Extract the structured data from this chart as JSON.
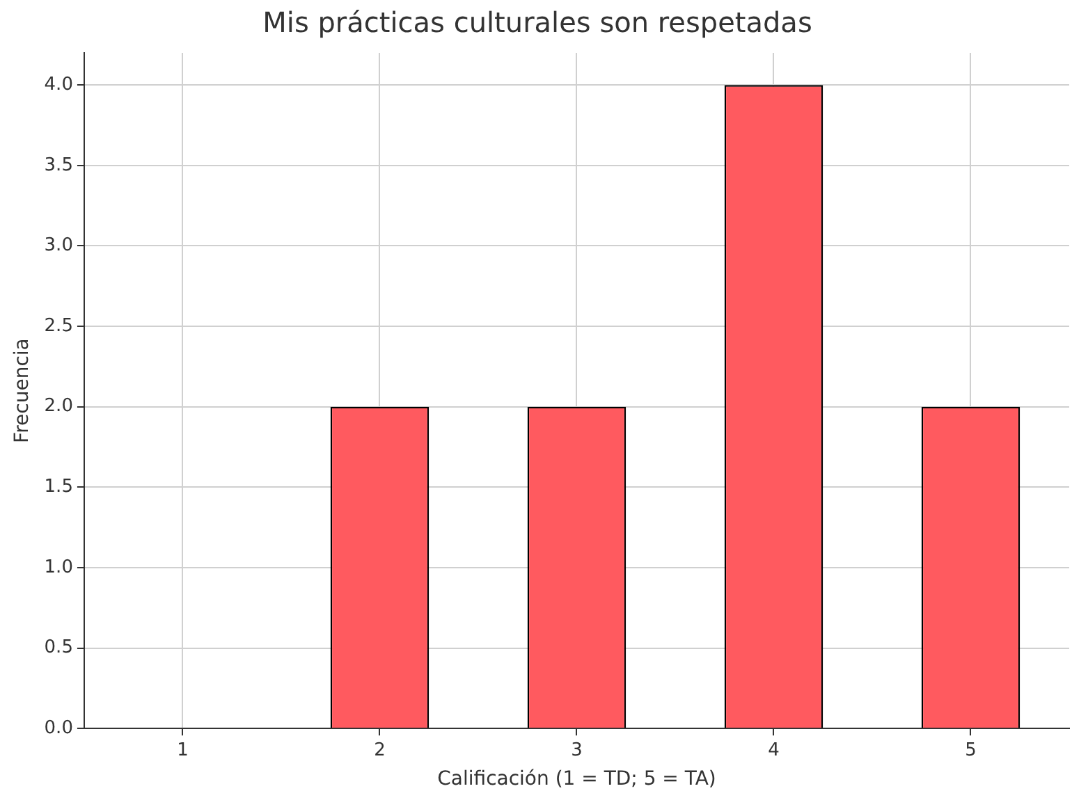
{
  "chart_data": {
    "type": "bar",
    "title": "Mis prácticas culturales son respetadas",
    "xlabel": "Calificación (1 = TD; 5 = TA)",
    "ylabel": "Frecuencia",
    "categories": [
      "1",
      "2",
      "3",
      "4",
      "5"
    ],
    "values": [
      0,
      2,
      2,
      4,
      2
    ],
    "color": "#ff5a5f",
    "ylim": [
      0,
      4.2
    ],
    "yticks": [
      {
        "value": 0,
        "label": "0.0"
      },
      {
        "value": 0.5,
        "label": "0.5"
      },
      {
        "value": 1,
        "label": "1.0"
      },
      {
        "value": 1.5,
        "label": "1.5"
      },
      {
        "value": 2,
        "label": "2.0"
      },
      {
        "value": 2.5,
        "label": "2.5"
      },
      {
        "value": 3,
        "label": "3.0"
      },
      {
        "value": 3.5,
        "label": "3.5"
      },
      {
        "value": 4,
        "label": "4.0"
      }
    ],
    "grid": true
  }
}
